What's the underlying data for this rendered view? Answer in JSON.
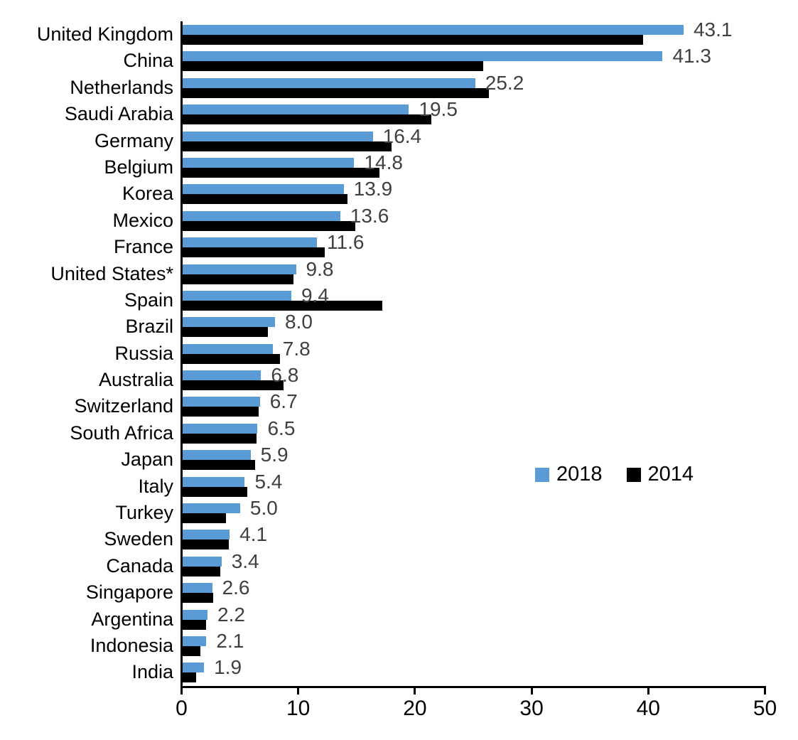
{
  "chart_data": {
    "type": "bar",
    "orientation": "horizontal",
    "title": "",
    "xlabel": "",
    "ylabel": "",
    "categories": [
      "United Kingdom",
      "China",
      "Netherlands",
      "Saudi Arabia",
      "Germany",
      "Belgium",
      "Korea",
      "Mexico",
      "France",
      "United States*",
      "Spain",
      "Brazil",
      "Russia",
      "Australia",
      "Switzerland",
      "South Africa",
      "Japan",
      "Italy",
      "Turkey",
      "Sweden",
      "Canada",
      "Singapore",
      "Argentina",
      "Indonesia",
      "India"
    ],
    "series": [
      {
        "name": "2018",
        "color": "#5B9BD5",
        "values": [
          43.1,
          41.3,
          25.2,
          19.5,
          16.4,
          14.8,
          13.9,
          13.6,
          11.6,
          9.8,
          9.4,
          8.0,
          7.8,
          6.8,
          6.7,
          6.5,
          5.9,
          5.4,
          5.0,
          4.1,
          3.4,
          2.6,
          2.2,
          2.1,
          1.9
        ]
      },
      {
        "name": "2014",
        "color": "#000000",
        "values": [
          39.6,
          25.9,
          26.4,
          21.4,
          18.0,
          17.0,
          14.2,
          14.9,
          12.3,
          9.6,
          17.2,
          7.4,
          8.4,
          8.7,
          6.6,
          6.4,
          6.3,
          5.6,
          3.8,
          4.0,
          3.3,
          2.7,
          2.1,
          1.6,
          1.2
        ]
      }
    ],
    "data_labels": {
      "on_series": "2018",
      "format": "one_decimal",
      "color": "#404040"
    },
    "xlim": [
      0,
      50
    ],
    "xticks": [
      0,
      10,
      20,
      30,
      40,
      50
    ],
    "grid": false,
    "legend": {
      "position": "center-right",
      "entries": [
        "2018",
        "2014"
      ]
    }
  },
  "colors": {
    "bar_2018": "#5B9BD5",
    "bar_2014": "#000000",
    "axis": "#000000",
    "value_label": "#404040",
    "background": "#FFFFFF"
  }
}
